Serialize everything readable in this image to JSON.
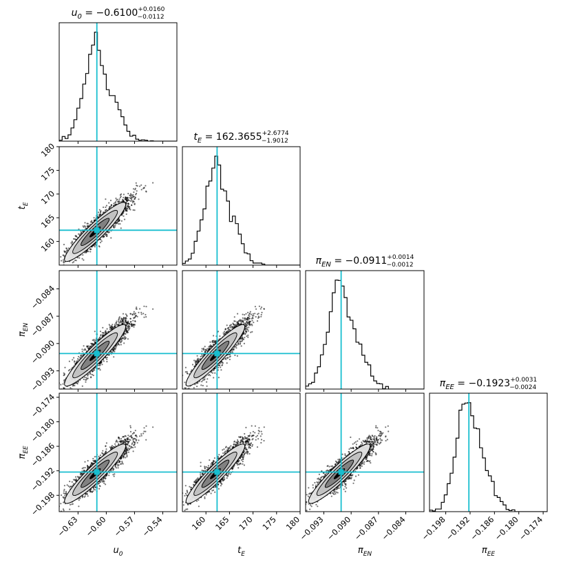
{
  "chart_data": {
    "type": "corner",
    "truth_color": "#17becf",
    "params": [
      {
        "key": "u0",
        "label": "u",
        "label_sub": "0",
        "median": -0.61,
        "plus": "+0.0160",
        "minus": "−0.0112",
        "value_text": "−0.6100",
        "range": [
          -0.65,
          -0.525
        ],
        "ticks": [
          -0.63,
          -0.6,
          -0.57,
          -0.54
        ],
        "tick_labels": [
          "−0.63",
          "−0.60",
          "−0.57",
          "−0.54"
        ],
        "sd": 0.0125
      },
      {
        "key": "tE",
        "label": "t",
        "label_sub": "E",
        "median": 162.3655,
        "plus": "+2.6774",
        "minus": "−1.9012",
        "value_text": "162.3655",
        "range": [
          155.0,
          180.0
        ],
        "ticks": [
          160,
          165,
          170,
          175,
          180
        ],
        "tick_labels": [
          "160",
          "165",
          "170",
          "175",
          "180"
        ],
        "sd": 2.4
      },
      {
        "key": "piEN",
        "label": "π",
        "label_sub": "EN",
        "median": -0.0911,
        "plus": "+0.0014",
        "minus": "−0.0012",
        "value_text": "−0.0911",
        "range": [
          -0.095,
          -0.082
        ],
        "ticks": [
          -0.093,
          -0.09,
          -0.087,
          -0.084
        ],
        "tick_labels": [
          "−0.093",
          "−0.090",
          "−0.087",
          "−0.084"
        ],
        "sd": 0.0013
      },
      {
        "key": "piEE",
        "label": "π",
        "label_sub": "EE",
        "median": -0.1923,
        "plus": "+0.0031",
        "minus": "−0.0024",
        "value_text": "−0.1923",
        "range": [
          -0.202,
          -0.173
        ],
        "ticks": [
          -0.198,
          -0.192,
          -0.186,
          -0.18,
          -0.174
        ],
        "tick_labels": [
          "−0.198",
          "−0.192",
          "−0.186",
          "−0.180",
          "−0.174"
        ],
        "sd": 0.0028
      }
    ],
    "titles": [
      "u0 = −0.6100 +0.0160 −0.0112",
      "tE = 162.3655 +2.6774 −1.9012",
      "πEN = −0.0911 +0.0014 −0.0012",
      "πEE = −0.1923 +0.0031 −0.0024"
    ]
  }
}
